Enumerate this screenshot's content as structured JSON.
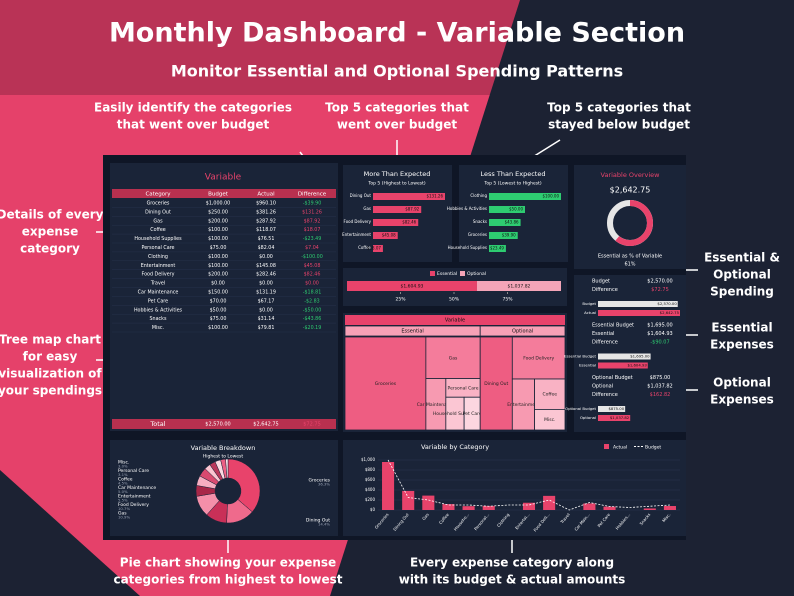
{
  "header": {
    "title": "Monthly Dashboard - Variable Section",
    "subtitle": "Monitor Essential and Optional Spending Patterns"
  },
  "callouts": [
    {
      "lines": [
        "Easily identify the categories",
        "that went over budget"
      ]
    },
    {
      "lines": [
        "Top 5 categories that",
        "went over budget"
      ]
    },
    {
      "lines": [
        "Top 5 categories that",
        "stayed below budget"
      ]
    },
    {
      "lines": [
        "Details of every",
        "expense",
        "category"
      ]
    },
    {
      "lines": [
        "Tree map chart",
        "for easy",
        "visualization of",
        "your spendings"
      ]
    },
    {
      "lines": [
        "Essential &",
        "Optional",
        "Spending"
      ]
    },
    {
      "lines": [
        "Essential",
        "Expenses"
      ]
    },
    {
      "lines": [
        "Optional",
        "Expenses"
      ]
    },
    {
      "lines": [
        "Pie chart showing your expense",
        "categories from highest to lowest"
      ]
    },
    {
      "lines": [
        "Every expense category along",
        "with its budget & actual amounts"
      ]
    }
  ],
  "variable_table": {
    "title": "Variable",
    "columns": [
      "Category",
      "Budget",
      "Actual",
      "Difference"
    ],
    "rows": [
      [
        "Groceries",
        "$1,000.00",
        "$960.10",
        "-$39.90"
      ],
      [
        "Dining Out",
        "$250.00",
        "$381.26",
        "$131.26"
      ],
      [
        "Gas",
        "$200.00",
        "$287.92",
        "$87.92"
      ],
      [
        "Coffee",
        "$100.00",
        "$118.07",
        "$18.07"
      ],
      [
        "Household Supplies",
        "$100.00",
        "$76.51",
        "-$23.49"
      ],
      [
        "Personal Care",
        "$75.00",
        "$82.04",
        "$7.04"
      ],
      [
        "Clothing",
        "$100.00",
        "$0.00",
        "-$100.00"
      ],
      [
        "Entertainment",
        "$100.00",
        "$145.08",
        "$45.08"
      ],
      [
        "Food Delivery",
        "$200.00",
        "$282.46",
        "$82.46"
      ],
      [
        "Travel",
        "$0.00",
        "$0.00",
        "$0.00"
      ],
      [
        "Car Maintenance",
        "$150.00",
        "$131.19",
        "-$18.81"
      ],
      [
        "Pet Care",
        "$70.00",
        "$67.17",
        "-$2.83"
      ],
      [
        "Hobbies & Activities",
        "$50.00",
        "$0.00",
        "-$50.00"
      ],
      [
        "Snacks",
        "$75.00",
        "$31.14",
        "-$43.86"
      ],
      [
        "Misc.",
        "$100.00",
        "$79.81",
        "-$20.19"
      ]
    ],
    "total": [
      "Total",
      "$2,570.00",
      "$2,642.75",
      "$72.75"
    ]
  },
  "more_than_expected": {
    "title": "More Than Expected",
    "subtitle": "Top 5 (Highest to Lowest)",
    "categories": [
      "Dining Out",
      "Gas",
      "Food Delivery",
      "Entertainment",
      "Coffee"
    ],
    "values": [
      131.26,
      87.92,
      82.46,
      45.08,
      18.07
    ],
    "value_labels": [
      "$131.26",
      "$87.92",
      "$82.46",
      "$45.08",
      "$18.07"
    ],
    "color": "#e8436b"
  },
  "less_than_expected": {
    "title": "Less Than Expected",
    "subtitle": "Top 5 (Lowest to Highest)",
    "categories": [
      "Clothing",
      "Hobbies & Activities",
      "Snacks",
      "Groceries",
      "Household Supplies"
    ],
    "values": [
      100,
      50,
      43.86,
      39.9,
      23.49
    ],
    "value_labels": [
      "$100.00",
      "$50.00",
      "$43.86",
      "$39.90",
      "$23.49"
    ],
    "color": "#2ecc71"
  },
  "overview": {
    "title": "Variable Overview",
    "total": "$2,642.75",
    "caption": "Essential as % of Variable",
    "value": 61,
    "value_label": "61%",
    "color": "#e8436b"
  },
  "split_bar": {
    "names": [
      "Essential",
      "Optional"
    ],
    "values": [
      1604.93,
      1037.82
    ],
    "value_labels": [
      "$1,604.93",
      "$1,037.82"
    ],
    "colors": [
      "#e8436b",
      "#f4a5b8"
    ],
    "ticks": [
      {
        "value": 25,
        "label": "25%"
      },
      {
        "value": 50,
        "label": "50%"
      },
      {
        "value": 75,
        "label": "75%"
      }
    ]
  },
  "treemap": {
    "title": "Variable",
    "groups": [
      {
        "name": "Essential",
        "items": [
          {
            "label": "Groceries",
            "value": 960.1
          },
          {
            "label": "Gas",
            "value": 287.92
          },
          {
            "label": "Car Maintenance",
            "value": 131.19
          },
          {
            "label": "Personal Care",
            "value": 82.04
          },
          {
            "label": "Household Supplies",
            "value": 76.51
          },
          {
            "label": "Pet Care",
            "value": 67.17
          }
        ]
      },
      {
        "name": "Optional",
        "items": [
          {
            "label": "Dining Out",
            "value": 381.26
          },
          {
            "label": "Food Delivery",
            "value": 282.46
          },
          {
            "label": "Entertainment",
            "value": 145.08
          },
          {
            "label": "Coffee",
            "value": 118.07
          },
          {
            "label": "Misc.",
            "value": 79.81
          }
        ]
      }
    ]
  },
  "summary": {
    "sections": [
      {
        "rows": [
          [
            "Budget",
            "$2,570.00"
          ],
          [
            "Difference",
            "$72.75"
          ]
        ],
        "bars": [
          {
            "label": "Budget",
            "value": 2570,
            "value_label": "$2,570.00"
          },
          {
            "label": "Actual",
            "value": 2642.75,
            "value_label": "$2,642.75"
          }
        ]
      },
      {
        "rows": [
          [
            "Essential Budget",
            "$1,695.00"
          ],
          [
            "Essential",
            "$1,604.93"
          ],
          [
            "Difference",
            "-$90.07"
          ]
        ],
        "bars": [
          {
            "label": "Essential Budget",
            "value": 1695,
            "value_label": "$1,695.00"
          },
          {
            "label": "Essential",
            "value": 1604.93,
            "value_label": "$1,604.93"
          }
        ]
      },
      {
        "rows": [
          [
            "Optional Budget",
            "$875.00"
          ],
          [
            "Optional",
            "$1,037.82"
          ],
          [
            "Difference",
            "$162.82"
          ]
        ],
        "bars": [
          {
            "label": "Optional Budget",
            "value": 875,
            "value_label": "$875.00"
          },
          {
            "label": "Optional",
            "value": 1037.82,
            "value_label": "$1,037.82"
          }
        ]
      }
    ]
  },
  "breakdown": {
    "title": "Variable Breakdown",
    "subtitle": "Highest to Lowest",
    "categories": [
      "Groceries",
      "Dining Out",
      "Gas",
      "Food Delivery",
      "Entertainment",
      "Car Maintenance",
      "Coffee",
      "Personal Care",
      "Misc.",
      null,
      null,
      null
    ],
    "values": [
      36.3,
      14.4,
      10.9,
      10.7,
      5.5,
      5.0,
      4.5,
      3.1,
      3.0,
      2.9,
      2.5,
      1.2
    ],
    "value_labels": [
      "36.3%",
      "14.4%",
      "10.9%",
      "10.7%",
      "5.5%",
      "5.0%",
      "4.5%",
      "3.1%",
      "3.0%",
      null,
      null,
      null
    ]
  },
  "by_category": {
    "type": "bar",
    "title": "Variable by Category",
    "categories": [
      "Groceries",
      "Dining Out",
      "Gas",
      "Coffee",
      "Househo...",
      "Personal...",
      "Clothing",
      "Entertai...",
      "Food Deli...",
      "Travel",
      "Car Main...",
      "Pet Care",
      "Hobbies...",
      "Snacks",
      "Misc."
    ],
    "series": [
      {
        "name": "Actual",
        "color": "#e8436b",
        "values": [
          960.1,
          381.26,
          287.92,
          118.07,
          76.51,
          82.04,
          0,
          145.08,
          282.46,
          0,
          131.19,
          67.17,
          0,
          31.14,
          79.81
        ]
      },
      {
        "name": "Budget",
        "color": "#ffffff",
        "values": [
          1000,
          250,
          200,
          100,
          100,
          75,
          100,
          100,
          200,
          0,
          150,
          70,
          50,
          75,
          100
        ]
      }
    ],
    "ylim": [
      0,
      1000
    ],
    "yticks": [
      {
        "value": 0,
        "label": "$0"
      },
      {
        "value": 200,
        "label": "$200"
      },
      {
        "value": 400,
        "label": "$400"
      },
      {
        "value": 600,
        "label": "$600"
      },
      {
        "value": 800,
        "label": "$800"
      },
      {
        "value": 1000,
        "label": "$1,000"
      }
    ]
  }
}
